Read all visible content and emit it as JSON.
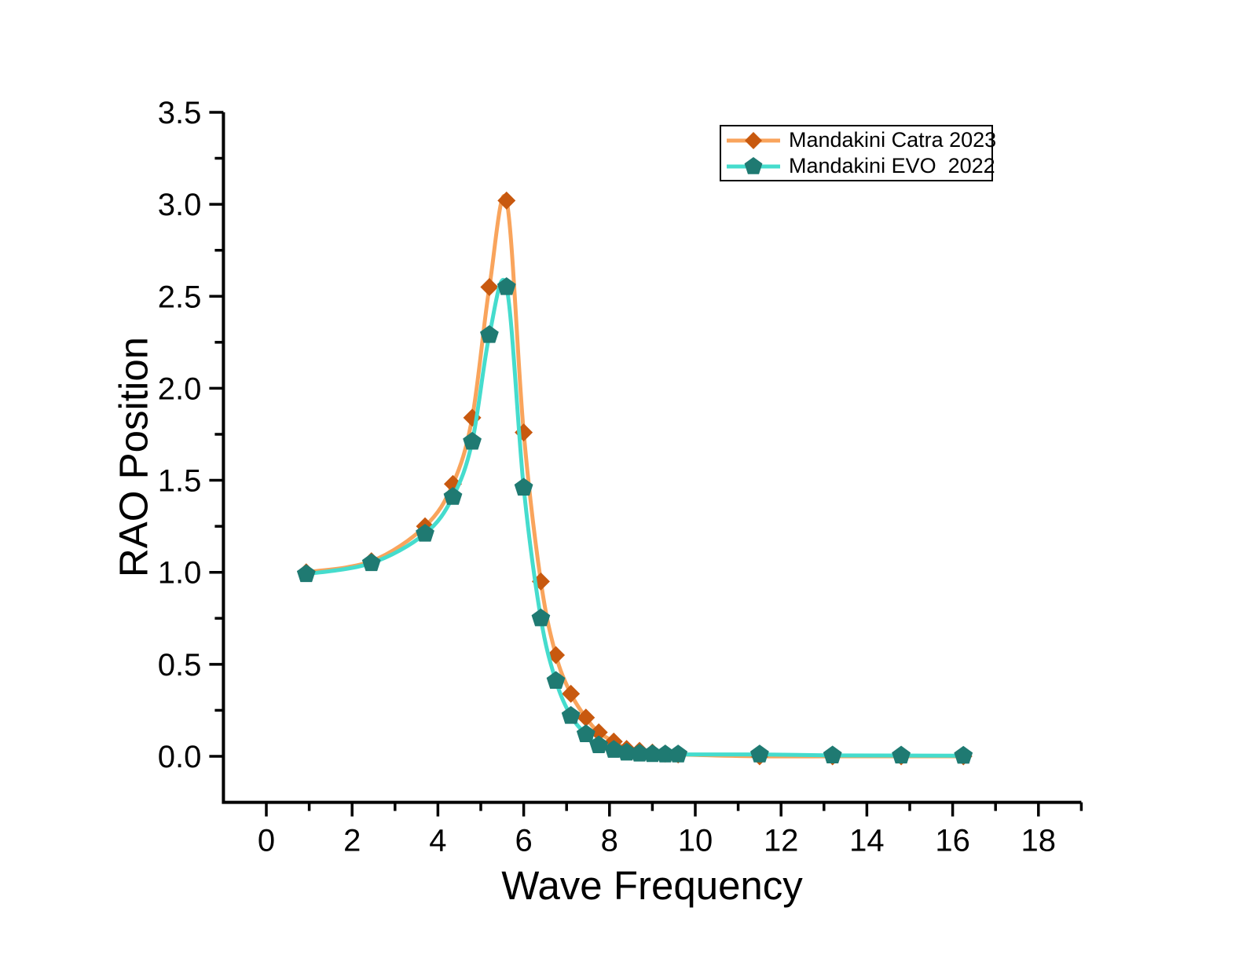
{
  "chart_data": {
    "type": "line",
    "title": "",
    "xlabel": "Wave Frequency",
    "ylabel": "RAO Position",
    "xlim": [
      -1,
      19
    ],
    "ylim": [
      -0.25,
      3.5
    ],
    "grid": false,
    "axis_color": "#000000",
    "background_color": "#FFFFFF",
    "legend_position": "top-right-inside",
    "x_major_ticks": [
      0,
      2,
      4,
      6,
      8,
      10,
      12,
      14,
      16,
      18
    ],
    "x_tick_labels": [
      "0",
      "2",
      "4",
      "6",
      "8",
      "10",
      "12",
      "14",
      "16",
      "18"
    ],
    "x_minor_ticks": [
      1,
      3,
      5,
      7,
      9,
      11,
      13,
      15,
      17,
      19
    ],
    "y_major_ticks": [
      0,
      0.5,
      1,
      1.5,
      2,
      2.5,
      3,
      3.5
    ],
    "y_tick_labels": [
      "0.0",
      "0.5",
      "1.0",
      "1.5",
      "2.0",
      "2.5",
      "3.0",
      "3.5"
    ],
    "y_minor_ticks": [
      0.25,
      0.75,
      1.25,
      1.75,
      2.25,
      2.75,
      3.25
    ],
    "x": [
      0.93,
      2.45,
      3.7,
      4.35,
      4.8,
      5.2,
      5.6,
      6.0,
      6.4,
      6.75,
      7.1,
      7.45,
      7.75,
      8.1,
      8.4,
      8.7,
      9.0,
      9.3,
      9.6,
      11.5,
      13.2,
      14.8,
      16.25
    ],
    "series": [
      {
        "name": "Mandakini Catra 2023",
        "marker": "diamond",
        "line_color": "#F9A45C",
        "marker_color": "#C8590F",
        "values": [
          1.0,
          1.06,
          1.25,
          1.48,
          1.84,
          2.55,
          3.02,
          1.76,
          0.95,
          0.55,
          0.34,
          0.21,
          0.13,
          0.08,
          0.04,
          0.03,
          0.02,
          0.015,
          0.01,
          0.0,
          0.0,
          0.0,
          0.0
        ]
      },
      {
        "name": "Mandakini EVO  2022",
        "marker": "pentagon",
        "line_color": "#45DCCD",
        "marker_color": "#1F7A72",
        "values": [
          0.99,
          1.05,
          1.21,
          1.41,
          1.71,
          2.29,
          2.55,
          1.46,
          0.75,
          0.41,
          0.22,
          0.12,
          0.06,
          0.035,
          0.02,
          0.015,
          0.012,
          0.01,
          0.01,
          0.01,
          0.005,
          0.004,
          0.003
        ]
      }
    ]
  }
}
